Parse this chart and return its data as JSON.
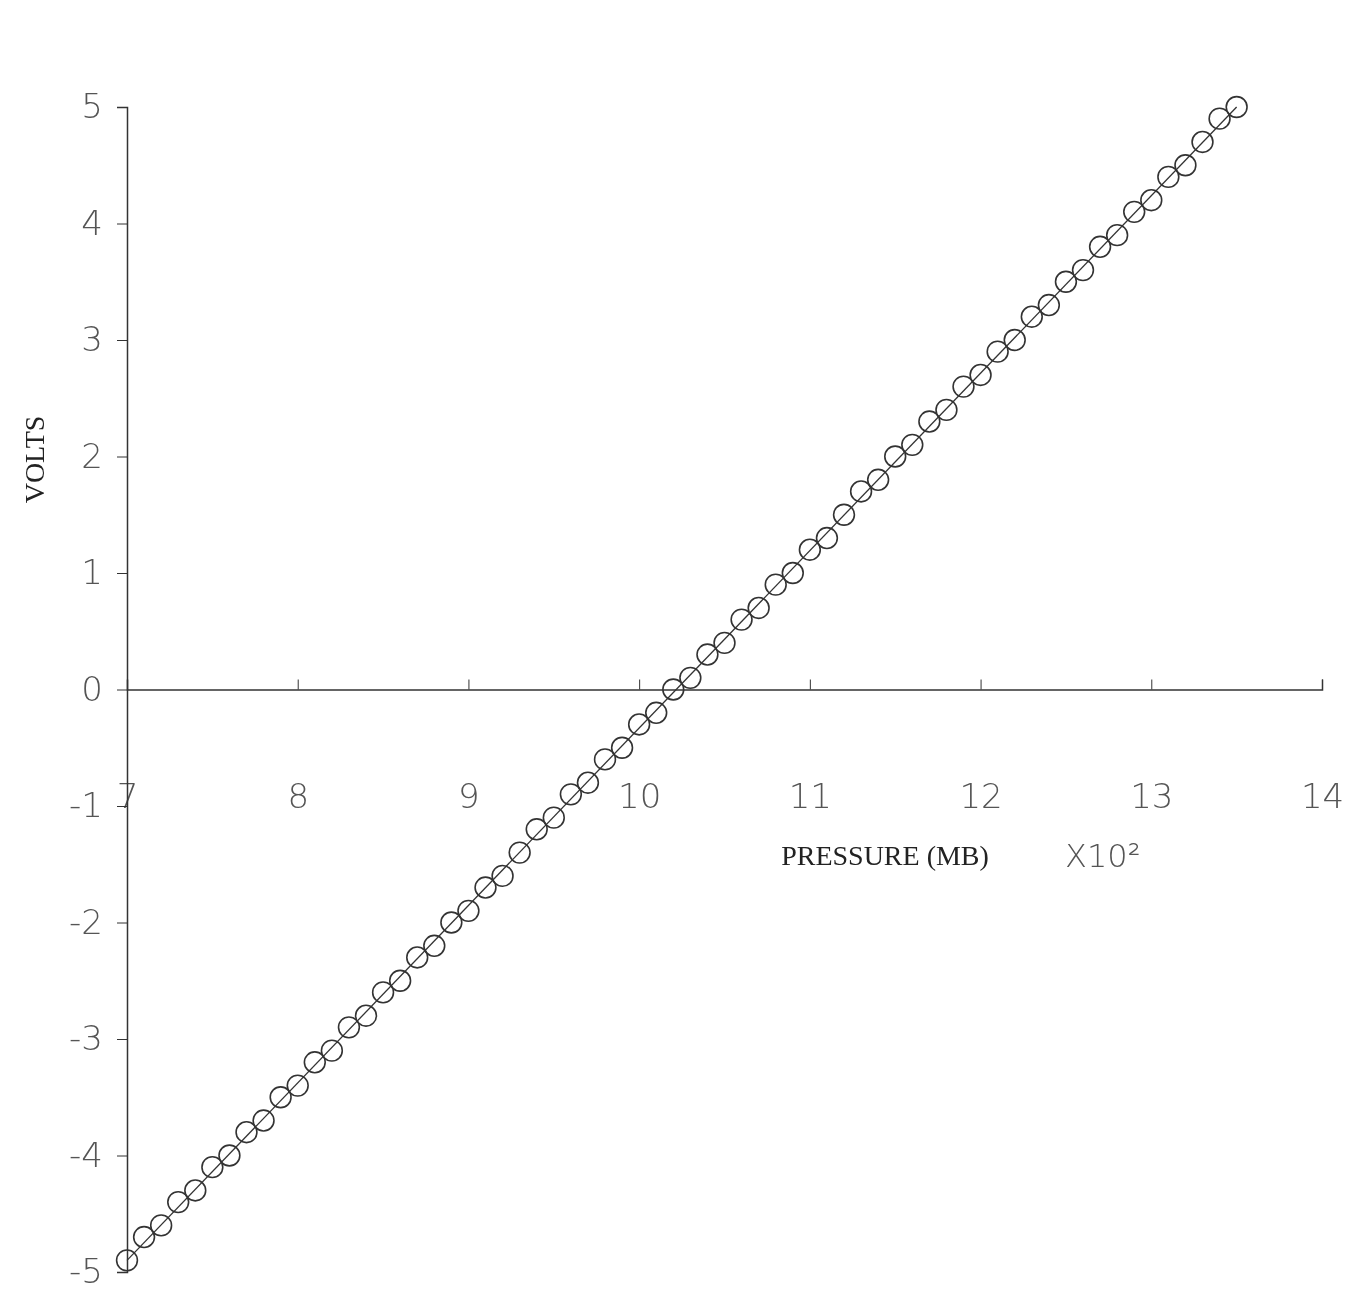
{
  "chart_data": {
    "type": "scatter",
    "xlabel": "PRESSURE (MB)",
    "ylabel": "VOLTS",
    "annotations": [
      "X10²"
    ],
    "xlim": [
      7,
      14
    ],
    "xticks": [
      7,
      8,
      9,
      10,
      11,
      12,
      13,
      14
    ],
    "ylim": [
      -5,
      5
    ],
    "yticks": [
      -5,
      -4,
      -3,
      -2,
      -1,
      0,
      1,
      2,
      3,
      4,
      5
    ],
    "grid": false,
    "series": [
      {
        "marker": "circle",
        "color": "#333333",
        "x": [
          7.0,
          7.1,
          7.2,
          7.3,
          7.4,
          7.5,
          7.6,
          7.7,
          7.8,
          7.9,
          8.0,
          8.1,
          8.2,
          8.3,
          8.4,
          8.5,
          8.6,
          8.7,
          8.8,
          8.9,
          9.0,
          9.1,
          9.2,
          9.3,
          9.4,
          9.5,
          9.6,
          9.7,
          9.8,
          9.9,
          10.0,
          10.1,
          10.2,
          10.3,
          10.4,
          10.5,
          10.6,
          10.7,
          10.8,
          10.9,
          11.0,
          11.1,
          11.2,
          11.3,
          11.4,
          11.5,
          11.6,
          11.7,
          11.8,
          11.9,
          12.0,
          12.1,
          12.2,
          12.3,
          12.4,
          12.5,
          12.6,
          12.7,
          12.8,
          12.9,
          13.0,
          13.1,
          13.2,
          13.3,
          13.4,
          13.5
        ],
        "values": [
          -4.9,
          -4.7,
          -4.6,
          -4.4,
          -4.3,
          -4.1,
          -4.0,
          -3.8,
          -3.7,
          -3.5,
          -3.4,
          -3.2,
          -3.1,
          -2.9,
          -2.8,
          -2.6,
          -2.5,
          -2.3,
          -2.2,
          -2.0,
          -1.9,
          -1.7,
          -1.6,
          -1.4,
          -1.2,
          -1.1,
          -0.9,
          -0.8,
          -0.6,
          -0.5,
          -0.3,
          -0.2,
          0.0,
          0.1,
          0.3,
          0.4,
          0.6,
          0.7,
          0.9,
          1.0,
          1.2,
          1.3,
          1.5,
          1.7,
          1.8,
          2.0,
          2.1,
          2.3,
          2.4,
          2.6,
          2.7,
          2.9,
          3.0,
          3.2,
          3.3,
          3.5,
          3.6,
          3.8,
          3.9,
          4.1,
          4.2,
          4.4,
          4.5,
          4.7,
          4.9,
          5.0
        ]
      },
      {
        "type": "line",
        "marker": "none",
        "line_style": "solid",
        "color": "#333333",
        "x": [
          7.0,
          13.5
        ],
        "values": [
          -4.9,
          5.0
        ]
      }
    ]
  }
}
